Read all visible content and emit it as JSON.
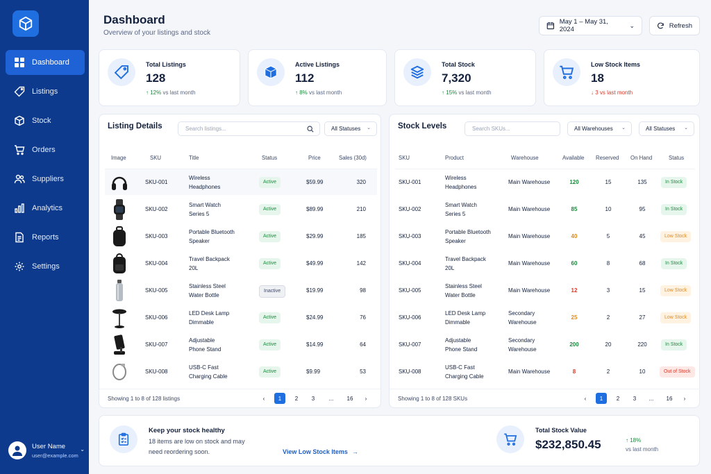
{
  "sidebar": {
    "items": [
      "Dashboard",
      "Listings",
      "Stock",
      "Orders",
      "Suppliers",
      "Analytics",
      "Reports",
      "Settings"
    ],
    "user": {
      "name": "User Name",
      "email": "user@example.com"
    }
  },
  "header": {
    "title": "Dashboard",
    "subtitle": "Overview of your listings and stock",
    "date_range": "May 1 – May 31, 2024",
    "refresh": "Refresh"
  },
  "kpis": [
    {
      "label": "Total Listings",
      "value": "128",
      "trend": "12%",
      "trend_suffix": "vs last month",
      "direction": "up",
      "icon": "tag-icon"
    },
    {
      "label": "Active Listings",
      "value": "112",
      "trend": "8%",
      "trend_suffix": "vs last month",
      "direction": "up",
      "icon": "box-icon"
    },
    {
      "label": "Total Stock",
      "value": "7,320",
      "trend": "15%",
      "trend_suffix": "vs last month",
      "direction": "up",
      "icon": "layers-icon"
    },
    {
      "label": "Low Stock Items",
      "value": "18",
      "trend": "3",
      "trend_suffix": "vs last month",
      "direction": "down",
      "icon": "cart-icon"
    }
  ],
  "listing": {
    "title": "Listing Details",
    "search_placeholder": "Search listings...",
    "filter": "All Statuses",
    "headers": [
      "Image",
      "SKU",
      "Title",
      "Status",
      "Price",
      "Sales (30d)"
    ],
    "rows": [
      {
        "sku": "SKU-001",
        "t1": "Wireless",
        "t2": "Headphones",
        "status": "Active",
        "price": "$59.99",
        "sales": "320",
        "img": "headphones-image"
      },
      {
        "sku": "SKU-002",
        "t1": "Smart Watch",
        "t2": "Series 5",
        "status": "Active",
        "price": "$89.99",
        "sales": "210",
        "img": "smartwatch-image"
      },
      {
        "sku": "SKU-003",
        "t1": "Portable Bluetooth",
        "t2": "Speaker",
        "status": "Active",
        "price": "$29.99",
        "sales": "185",
        "img": "speaker-image"
      },
      {
        "sku": "SKU-004",
        "t1": "Travel Backpack",
        "t2": "20L",
        "status": "Active",
        "price": "$49.99",
        "sales": "142",
        "img": "backpack-image"
      },
      {
        "sku": "SKU-005",
        "t1": "Stainless Steel",
        "t2": "Water Bottle",
        "status": "Inactive",
        "price": "$19.99",
        "sales": "98",
        "img": "bottle-image"
      },
      {
        "sku": "SKU-006",
        "t1": "LED Desk Lamp",
        "t2": "Dimmable",
        "status": "Active",
        "price": "$24.99",
        "sales": "76",
        "img": "lamp-image"
      },
      {
        "sku": "SKU-007",
        "t1": "Adjustable",
        "t2": "Phone Stand",
        "status": "Active",
        "price": "$14.99",
        "sales": "64",
        "img": "phone-stand-image"
      },
      {
        "sku": "SKU-008",
        "t1": "USB-C Fast",
        "t2": "Charging Cable",
        "status": "Active",
        "price": "$9.99",
        "sales": "53",
        "img": "cable-image"
      }
    ],
    "footer": "Showing 1 to 8 of 128 listings",
    "pages": [
      "1",
      "2",
      "3",
      "...",
      "16"
    ]
  },
  "stock": {
    "title": "Stock Levels",
    "search_placeholder": "Search SKUs...",
    "filter_wh": "All Warehouses",
    "filter_status": "All Statuses",
    "headers": [
      "SKU",
      "Product",
      "Warehouse",
      "Available",
      "Reserved",
      "On Hand",
      "Status"
    ],
    "rows": [
      {
        "sku": "SKU-001",
        "p1": "Wireless",
        "p2": "Headphones",
        "w1": "Main Warehouse",
        "w2": "",
        "avail": "120",
        "res": "15",
        "onhand": "135",
        "status": "In Stock",
        "level": "in"
      },
      {
        "sku": "SKU-002",
        "p1": "Smart Watch",
        "p2": "Series 5",
        "w1": "Main Warehouse",
        "w2": "",
        "avail": "85",
        "res": "10",
        "onhand": "95",
        "status": "In Stock",
        "level": "in"
      },
      {
        "sku": "SKU-003",
        "p1": "Portable Bluetooth",
        "p2": "Speaker",
        "w1": "Main Warehouse",
        "w2": "",
        "avail": "40",
        "res": "5",
        "onhand": "45",
        "status": "Low Stock",
        "level": "low"
      },
      {
        "sku": "SKU-004",
        "p1": "Travel Backpack",
        "p2": "20L",
        "w1": "Main Warehouse",
        "w2": "",
        "avail": "60",
        "res": "8",
        "onhand": "68",
        "status": "In Stock",
        "level": "in"
      },
      {
        "sku": "SKU-005",
        "p1": "Stainless Steel",
        "p2": "Water Bottle",
        "w1": "Main Warehouse",
        "w2": "",
        "avail": "12",
        "res": "3",
        "onhand": "15",
        "status": "Low Stock",
        "level": "low-red"
      },
      {
        "sku": "SKU-006",
        "p1": "LED Desk Lamp",
        "p2": "Dimmable",
        "w1": "Secondary",
        "w2": "Warehouse",
        "avail": "25",
        "res": "2",
        "onhand": "27",
        "status": "Low Stock",
        "level": "low"
      },
      {
        "sku": "SKU-007",
        "p1": "Adjustable",
        "p2": "Phone Stand",
        "w1": "Secondary",
        "w2": "Warehouse",
        "avail": "200",
        "res": "20",
        "onhand": "220",
        "status": "In Stock",
        "level": "in"
      },
      {
        "sku": "SKU-008",
        "p1": "USB-C Fast",
        "p2": "Charging Cable",
        "w1": "Main Warehouse",
        "w2": "",
        "avail": "8",
        "res": "2",
        "onhand": "10",
        "status": "Out of Stock",
        "level": "out"
      }
    ],
    "footer": "Showing 1 to 8 of 128 SKUs",
    "pages": [
      "1",
      "2",
      "3",
      "...",
      "16"
    ]
  },
  "bottom": {
    "title": "Keep your stock healthy",
    "line1": "18 items are low on stock and may",
    "line2": "need reordering soon.",
    "link": "View Low Stock Items",
    "value_label": "Total Stock Value",
    "value": "$232,850.45",
    "trend": "18%",
    "trend_suffix": "vs last month"
  },
  "colors": {
    "sidebar": "#0d3a8c",
    "accent": "#1f6fe0",
    "green": "#1a8a3c",
    "orange": "#e08a1e",
    "red": "#d63a2a"
  }
}
